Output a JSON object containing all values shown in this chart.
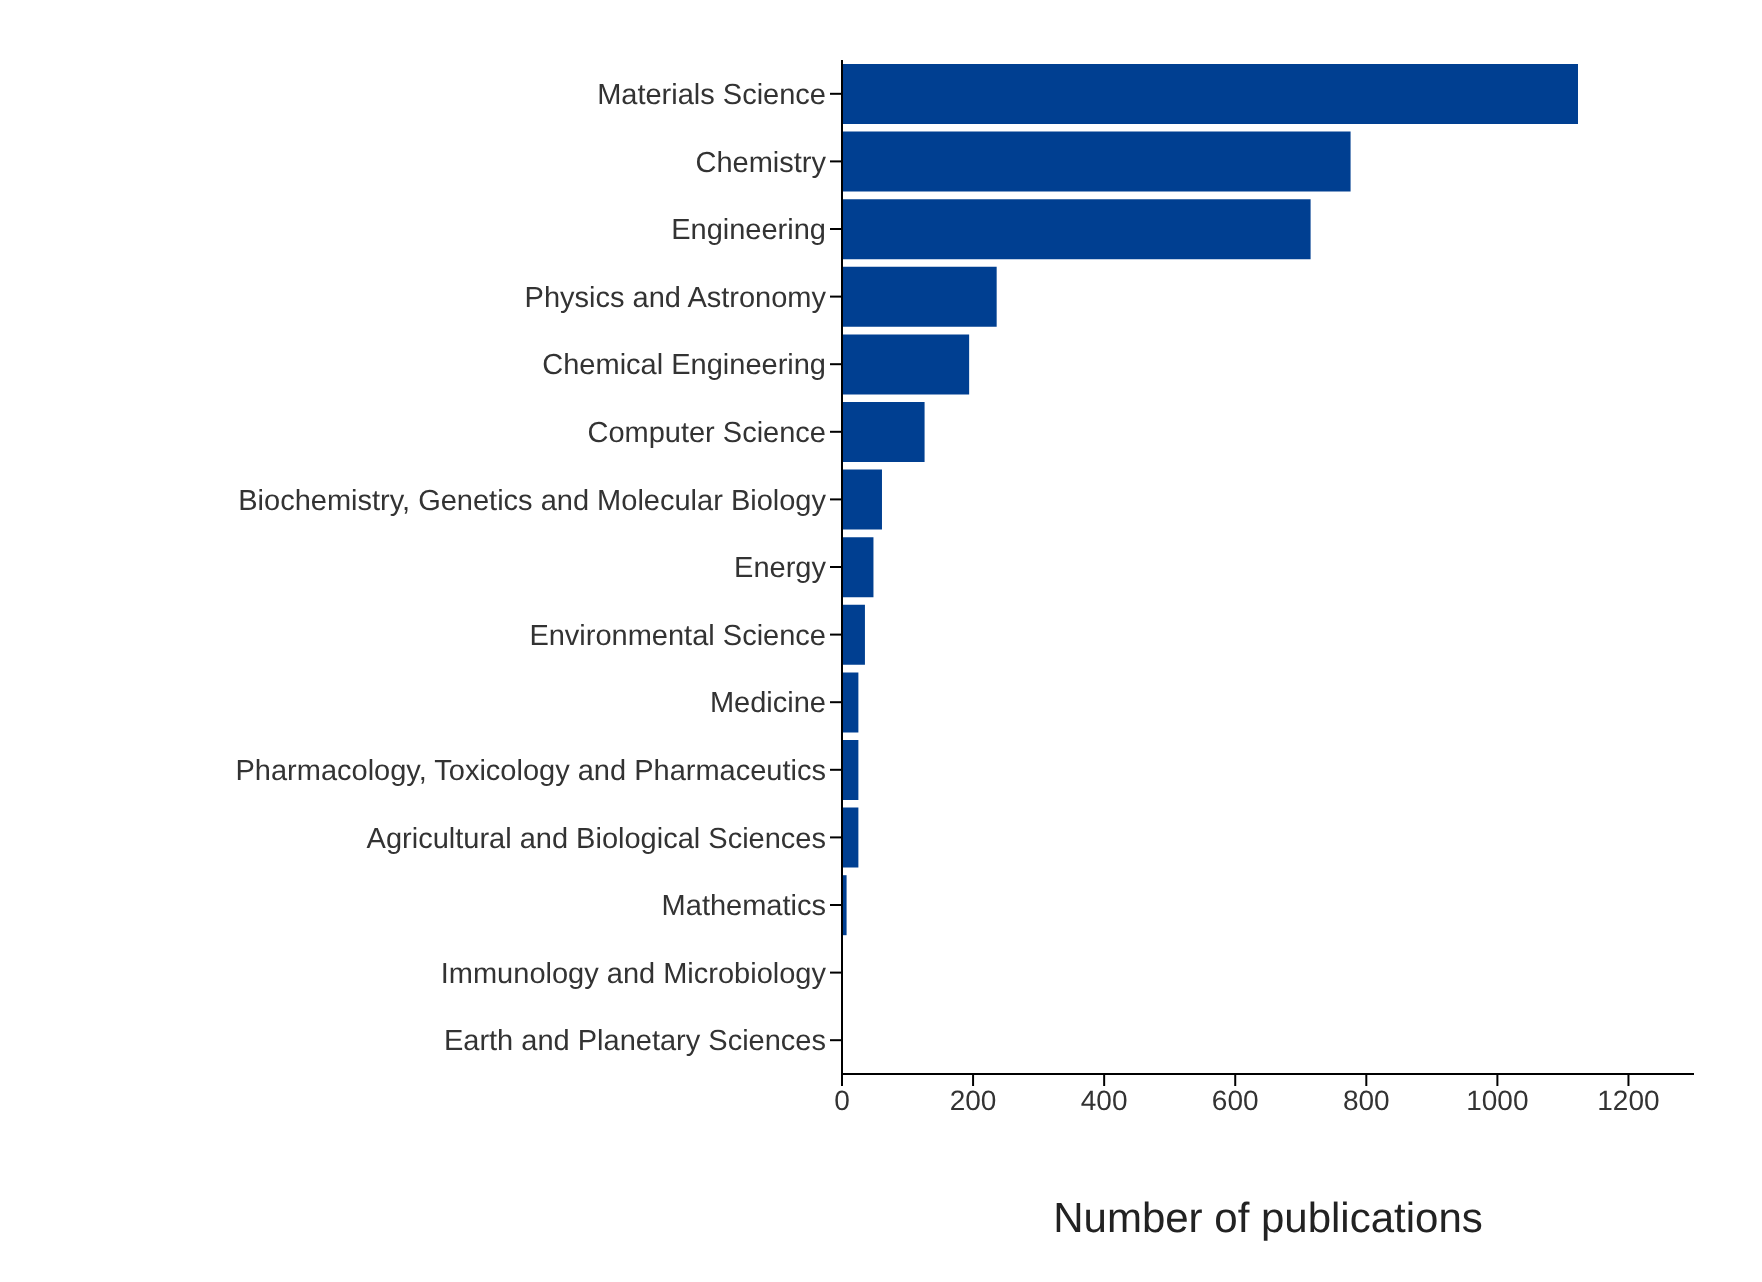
{
  "chart_data": {
    "type": "bar",
    "orientation": "horizontal",
    "xlabel": "Number of publications",
    "categories": [
      "Materials Science",
      "Chemistry",
      "Engineering",
      "Physics and Astronomy",
      "Chemical Engineering",
      "Computer Science",
      "Biochemistry, Genetics and Molecular Biology",
      "Energy",
      "Environmental Science",
      "Medicine",
      "Pharmacology, Toxicology and Pharmaceutics",
      "Agricultural and Biological Sciences",
      "Mathematics",
      "Immunology and Microbiology",
      "Earth and Planetary Sciences"
    ],
    "values": [
      1123,
      776,
      715,
      236,
      194,
      126,
      61,
      48,
      35,
      25,
      25,
      25,
      7,
      1,
      1
    ],
    "color": "#003f91",
    "xlim": [
      0,
      1300
    ],
    "xticks": [
      0,
      200,
      400,
      600,
      800,
      1000,
      1200
    ],
    "grid": false,
    "legend": false
  }
}
